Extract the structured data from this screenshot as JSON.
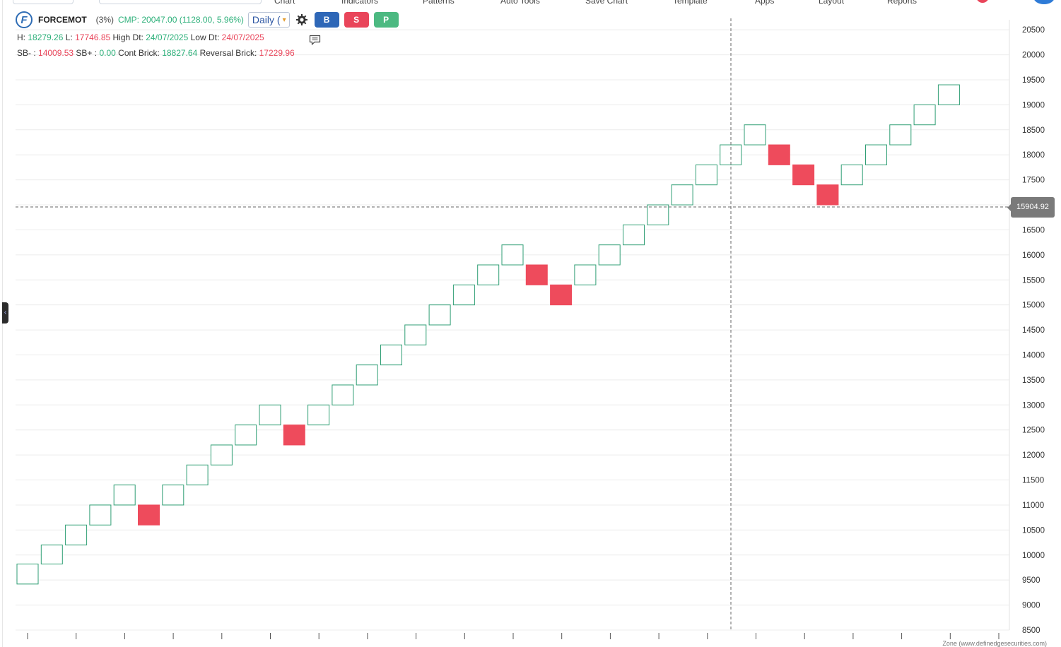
{
  "topbar": {
    "menu": [
      "Chart",
      "Indicators",
      "Patterns",
      "Auto Tools",
      "Save Chart",
      "Template",
      "Apps",
      "Layout",
      "Reports"
    ]
  },
  "header": {
    "symbol": "FORCEMOT",
    "change_pct": "(3%)",
    "cmp": "CMP: 20047.00 (1128.00, 5.96%)",
    "interval": "Daily (",
    "buy_label": "B",
    "sell_label": "S",
    "p_label": "P"
  },
  "info": {
    "h_label": "H:",
    "h_value": "18279.26",
    "l_label": "L:",
    "l_value": "17746.85",
    "high_dt_label": "High Dt:",
    "high_dt": "24/07/2025",
    "low_dt_label": "Low Dt:",
    "low_dt": "24/07/2025",
    "sb_minus_label": "SB- :",
    "sb_minus": "14009.53",
    "sb_plus_label": "SB+ :",
    "sb_plus": "0.00",
    "cont_label": "Cont Brick:",
    "cont_value": "18827.64",
    "rev_label": "Reversal Brick:",
    "rev_value": "17229.96"
  },
  "crosshair": {
    "price_label": "15904.92"
  },
  "footer": {
    "text": "Zone (www.definedgesecurities.com)"
  },
  "colors": {
    "up_brick_border": "#2f9e74",
    "down_brick_fill": "#ee4b5c",
    "grid": "#ececec",
    "crosshair": "#666666"
  },
  "chart_data": {
    "type": "renko",
    "title": "",
    "xlabel": "",
    "ylabel": "",
    "ylim": [
      8500,
      20700
    ],
    "y_ticks": [
      8500,
      9000,
      9500,
      10000,
      10500,
      11000,
      11500,
      12000,
      12500,
      13000,
      13500,
      14000,
      14500,
      15000,
      15500,
      16000,
      16500,
      17000,
      17500,
      18000,
      18500,
      19000,
      19500,
      20000,
      20500
    ],
    "brick_size_note": "bricks alternate: up = hollow green, down = solid red",
    "bricks": [
      {
        "direction": "up",
        "low": 9420,
        "high": 9820
      },
      {
        "direction": "up",
        "low": 9820,
        "high": 10200
      },
      {
        "direction": "up",
        "low": 10200,
        "high": 10600
      },
      {
        "direction": "up",
        "low": 10600,
        "high": 11000
      },
      {
        "direction": "up",
        "low": 11000,
        "high": 11400
      },
      {
        "direction": "down",
        "low": 10600,
        "high": 11000
      },
      {
        "direction": "up",
        "low": 11000,
        "high": 11400
      },
      {
        "direction": "up",
        "low": 11400,
        "high": 11800
      },
      {
        "direction": "up",
        "low": 11800,
        "high": 12200
      },
      {
        "direction": "up",
        "low": 12200,
        "high": 12600
      },
      {
        "direction": "up",
        "low": 12600,
        "high": 13000
      },
      {
        "direction": "down",
        "low": 12200,
        "high": 12600
      },
      {
        "direction": "up",
        "low": 12600,
        "high": 13000
      },
      {
        "direction": "up",
        "low": 13000,
        "high": 13400
      },
      {
        "direction": "up",
        "low": 13400,
        "high": 13800
      },
      {
        "direction": "up",
        "low": 13800,
        "high": 14200
      },
      {
        "direction": "up",
        "low": 14200,
        "high": 14600
      },
      {
        "direction": "up",
        "low": 14600,
        "high": 15000
      },
      {
        "direction": "up",
        "low": 15000,
        "high": 15400
      },
      {
        "direction": "up",
        "low": 15400,
        "high": 15800
      },
      {
        "direction": "up",
        "low": 15800,
        "high": 16200
      },
      {
        "direction": "down",
        "low": 15400,
        "high": 15800
      },
      {
        "direction": "down",
        "low": 15000,
        "high": 15400
      },
      {
        "direction": "up",
        "low": 15400,
        "high": 15800
      },
      {
        "direction": "up",
        "low": 15800,
        "high": 16200
      },
      {
        "direction": "up",
        "low": 16200,
        "high": 16600
      },
      {
        "direction": "up",
        "low": 16600,
        "high": 17000
      },
      {
        "direction": "up",
        "low": 17000,
        "high": 17400
      },
      {
        "direction": "up",
        "low": 17400,
        "high": 17800
      },
      {
        "direction": "up",
        "low": 17800,
        "high": 18200
      },
      {
        "direction": "up",
        "low": 18200,
        "high": 18600
      },
      {
        "direction": "down",
        "low": 17800,
        "high": 18200
      },
      {
        "direction": "down",
        "low": 17400,
        "high": 17800
      },
      {
        "direction": "down",
        "low": 17000,
        "high": 17400
      },
      {
        "direction": "up",
        "low": 17400,
        "high": 17800
      },
      {
        "direction": "up",
        "low": 17800,
        "high": 18200
      },
      {
        "direction": "up",
        "low": 18200,
        "high": 18600
      },
      {
        "direction": "up",
        "low": 18600,
        "high": 19000
      },
      {
        "direction": "up",
        "low": 19000,
        "high": 19400
      }
    ]
  }
}
